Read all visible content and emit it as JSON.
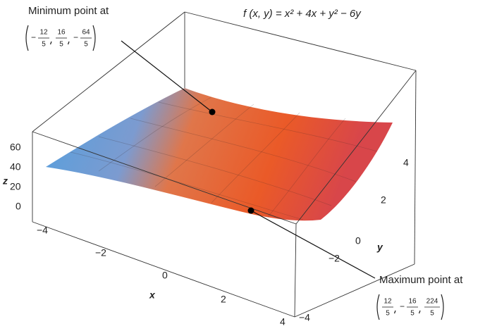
{
  "title": "f (x, y) = x² + 4x + y² − 6y",
  "annotations": {
    "min": {
      "label": "Minimum point at",
      "coords": [
        {
          "sign": "−",
          "num": "12",
          "den": "5"
        },
        {
          "num": "16",
          "den": "5"
        },
        {
          "sign": "−",
          "num": "64",
          "den": "5"
        }
      ]
    },
    "max": {
      "label": "Maximum point at",
      "coords": [
        {
          "num": "12",
          "den": "5"
        },
        {
          "sign": "−",
          "num": "16",
          "den": "5"
        },
        {
          "num": "224",
          "den": "5"
        }
      ]
    }
  },
  "axes": {
    "x": {
      "label": "x",
      "ticks": [
        "−4",
        "−2",
        "0",
        "2",
        "4"
      ]
    },
    "y": {
      "label": "y",
      "ticks": [
        "−4",
        "−2",
        "0",
        "2",
        "4"
      ]
    },
    "z": {
      "label": "z",
      "ticks": [
        "0",
        "20",
        "40",
        "60"
      ]
    }
  }
}
